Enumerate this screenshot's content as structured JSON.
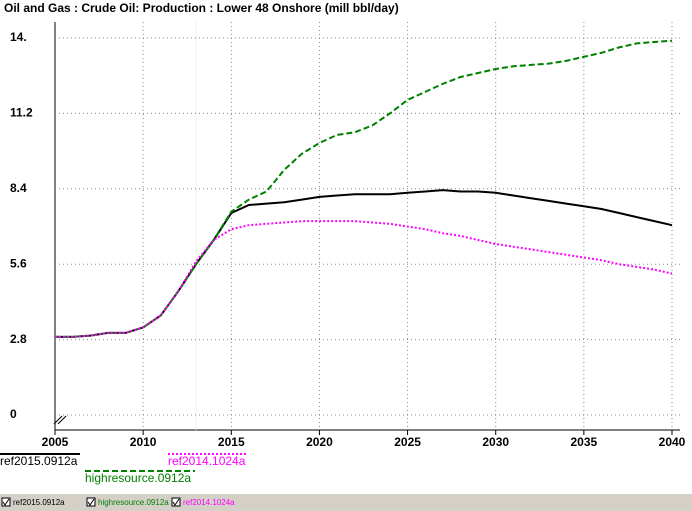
{
  "chart_data": {
    "type": "line",
    "title": "Oil and Gas : Crude Oil: Production : Lower 48 Onshore (mill bbl/day)",
    "x": [
      2005,
      2006,
      2007,
      2008,
      2009,
      2010,
      2011,
      2012,
      2013,
      2014,
      2015,
      2016,
      2017,
      2018,
      2019,
      2020,
      2021,
      2022,
      2023,
      2024,
      2025,
      2026,
      2027,
      2028,
      2029,
      2030,
      2031,
      2032,
      2033,
      2034,
      2035,
      2036,
      2037,
      2038,
      2039,
      2040
    ],
    "series": [
      {
        "name": "ref2015.0912a",
        "color": "#000000",
        "dash": "solid",
        "values": [
          2.9,
          2.9,
          2.95,
          3.05,
          3.05,
          3.25,
          3.7,
          4.6,
          5.6,
          6.5,
          7.5,
          7.8,
          7.85,
          7.9,
          8.0,
          8.1,
          8.15,
          8.2,
          8.2,
          8.2,
          8.25,
          8.3,
          8.35,
          8.3,
          8.3,
          8.25,
          8.15,
          8.05,
          7.95,
          7.85,
          7.75,
          7.65,
          7.5,
          7.35,
          7.2,
          7.05
        ]
      },
      {
        "name": "highresource.0912a",
        "color": "#008000",
        "dash": "dashed",
        "values": [
          2.9,
          2.9,
          2.95,
          3.05,
          3.05,
          3.25,
          3.7,
          4.6,
          5.6,
          6.5,
          7.55,
          8.0,
          8.3,
          9.1,
          9.7,
          10.1,
          10.4,
          10.5,
          10.75,
          11.2,
          11.7,
          12.0,
          12.3,
          12.55,
          12.7,
          12.85,
          12.95,
          13.0,
          13.05,
          13.15,
          13.3,
          13.45,
          13.65,
          13.8,
          13.85,
          13.9
        ]
      },
      {
        "name": "ref2014.1024a",
        "color": "#ff00ff",
        "dash": "dotted",
        "values": [
          2.9,
          2.9,
          2.95,
          3.05,
          3.05,
          3.25,
          3.7,
          4.6,
          5.7,
          6.5,
          6.9,
          7.05,
          7.1,
          7.15,
          7.2,
          7.2,
          7.2,
          7.2,
          7.15,
          7.1,
          7.0,
          6.9,
          6.75,
          6.65,
          6.5,
          6.35,
          6.25,
          6.15,
          6.05,
          5.95,
          5.85,
          5.75,
          5.6,
          5.5,
          5.4,
          5.25
        ]
      }
    ],
    "xlim": [
      2005,
      2040
    ],
    "xticks": [
      2005,
      2010,
      2015,
      2020,
      2025,
      2030,
      2035,
      2040
    ],
    "ylim": [
      0,
      14
    ],
    "yticks": [
      0,
      2.8,
      5.6,
      8.4,
      11.2,
      {
        "value": 14,
        "label": "14."
      }
    ],
    "grid": true
  }
}
